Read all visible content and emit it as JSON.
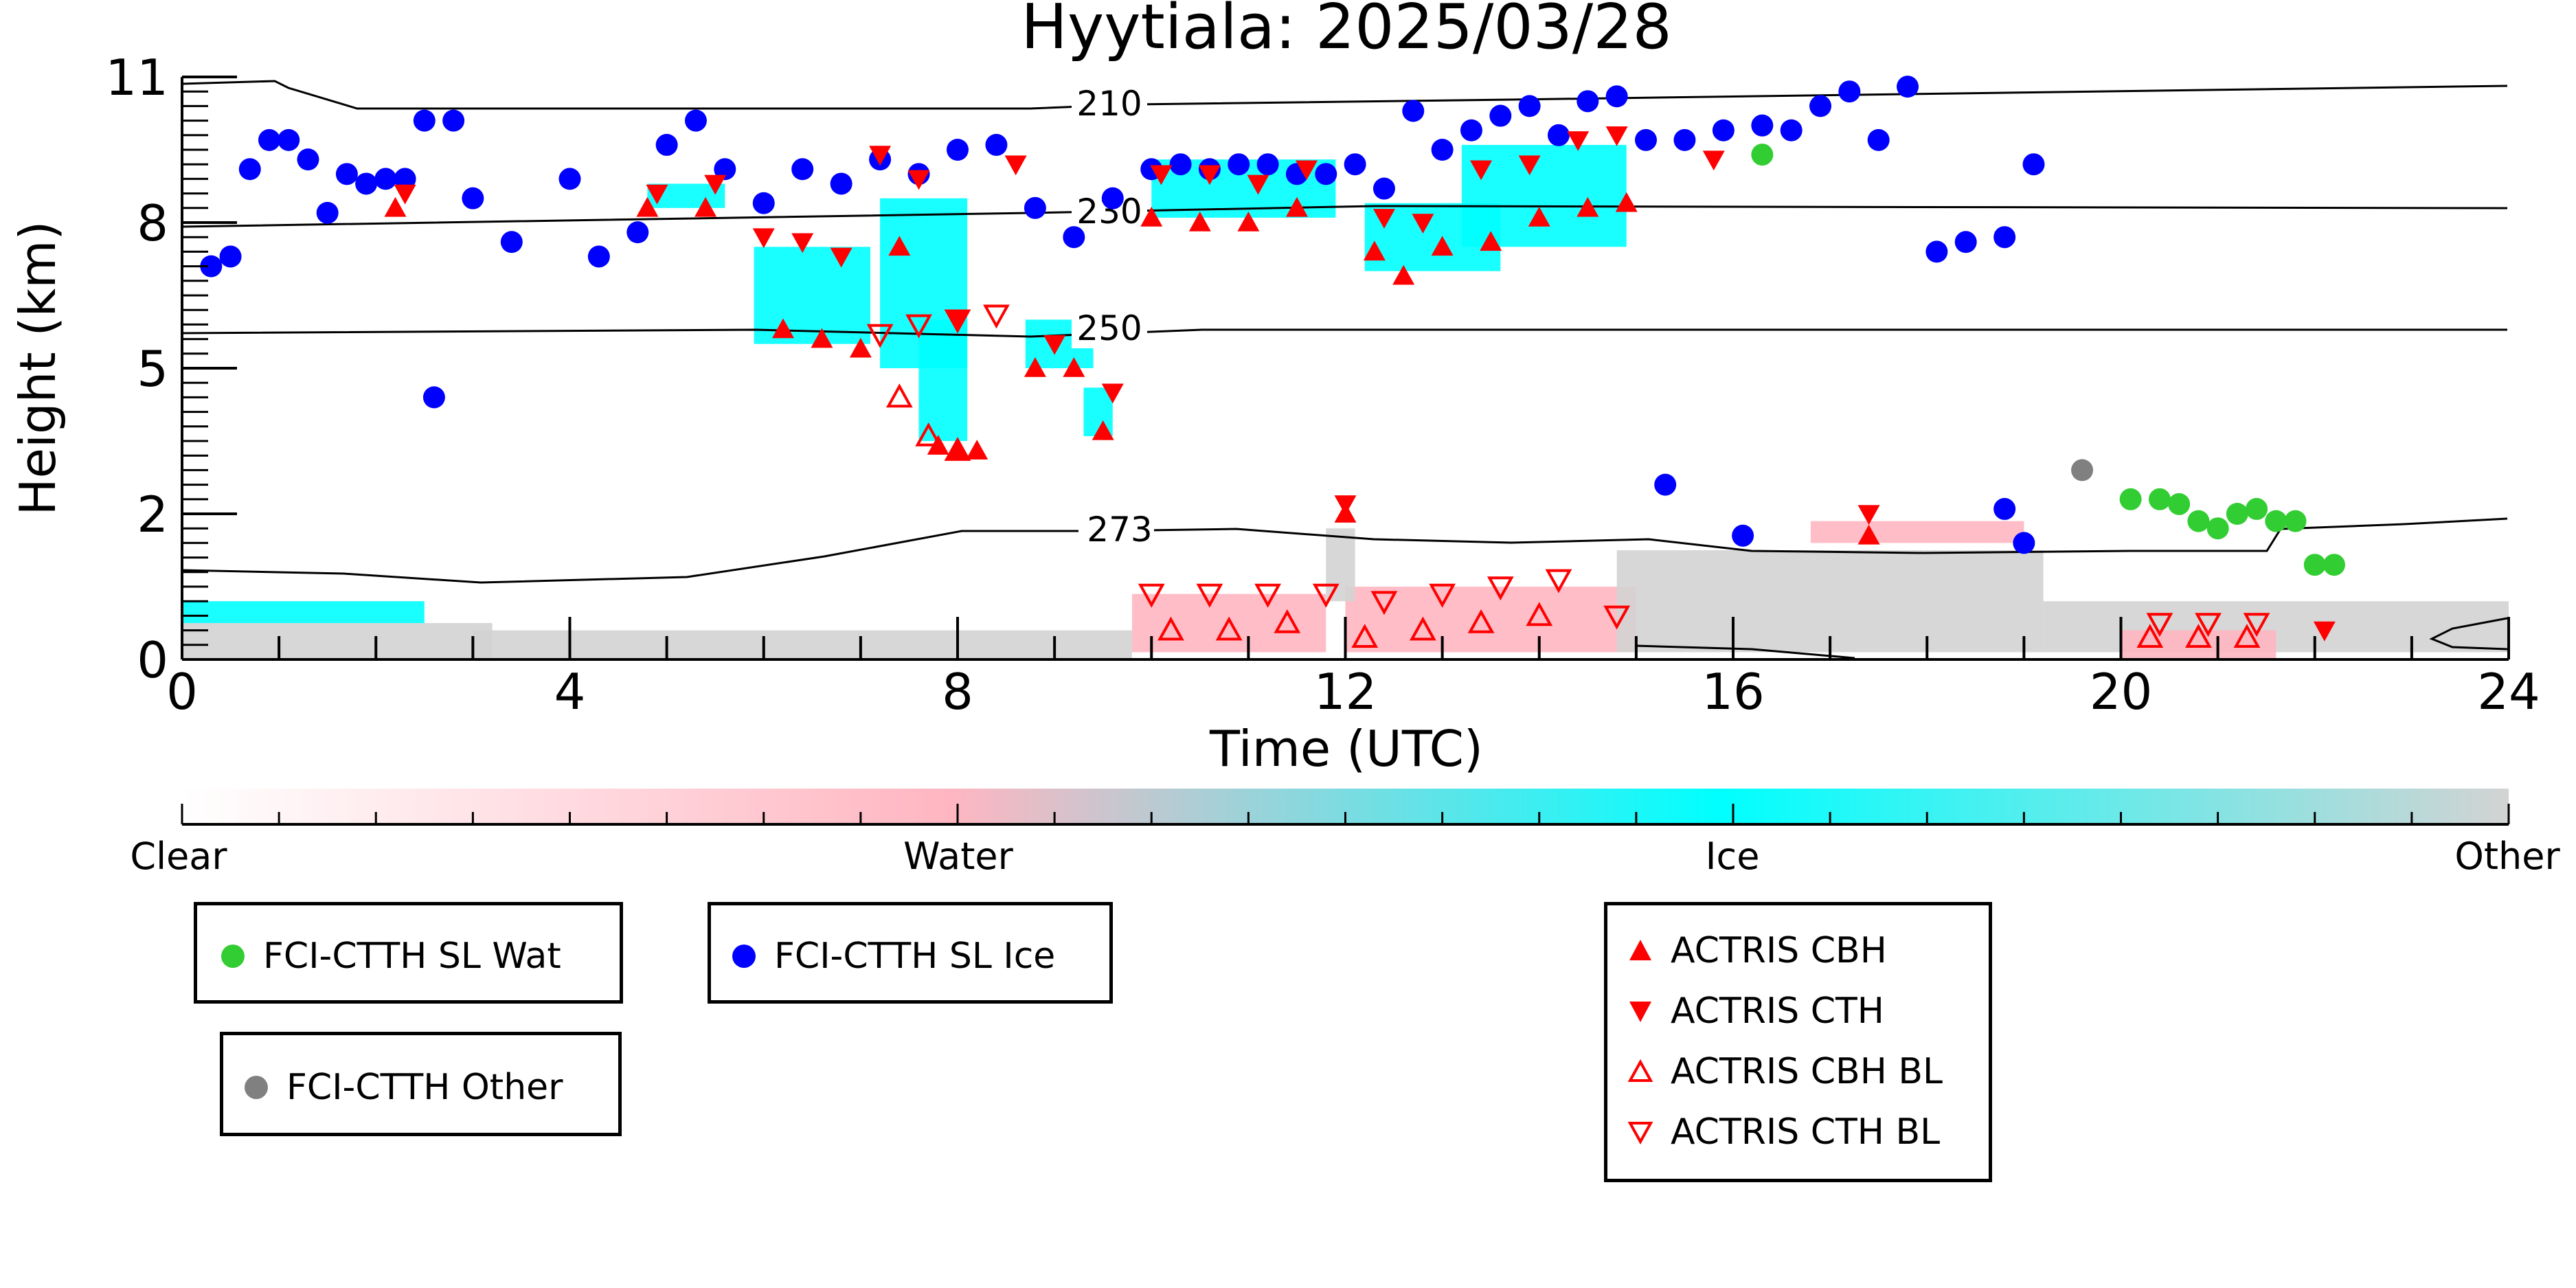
{
  "chart_data": {
    "type": "scatter",
    "title": "Hyytiala: 2025/03/28",
    "xlabel": "Time (UTC)",
    "ylabel": "Height (km)",
    "xlim": [
      0,
      24
    ],
    "ylim": [
      0,
      11
    ],
    "x_ticks": [
      0,
      4,
      8,
      12,
      16,
      20,
      24
    ],
    "y_ticks": [
      0,
      2,
      5,
      8,
      11
    ],
    "y_tick_labels": [
      "0",
      "2",
      "5",
      "8",
      "11"
    ],
    "y_scale": "nonlinear (labels 0,2,5,8,11 equally spaced)",
    "contour_labels": [
      "210",
      "230",
      "250",
      "273"
    ],
    "colorbar": {
      "labels": [
        "Clear",
        "Water",
        "Ice",
        "Other"
      ],
      "colors": [
        "#ffffff",
        "#ffb6c1",
        "#00ffff",
        "#d3d3d3"
      ]
    },
    "series": [
      {
        "name": "FCI-CTTH SL Wat",
        "color": "#32cd32",
        "x": [
          16.3,
          20.1,
          20.4,
          20.6,
          20.8,
          21.0,
          21.2,
          21.4,
          21.6,
          21.8,
          22.0,
          22.2
        ],
        "y": [
          9.4,
          2.3,
          2.3,
          2.2,
          1.9,
          1.8,
          2.0,
          2.1,
          1.9,
          1.9,
          1.3,
          1.3
        ]
      },
      {
        "name": "FCI-CTTH SL Ice",
        "color": "#0000ff",
        "x": [
          0.3,
          0.5,
          0.7,
          0.9,
          1.1,
          1.3,
          1.5,
          1.7,
          1.9,
          2.1,
          2.3,
          2.5,
          2.8,
          3.0,
          3.4,
          4.0,
          4.3,
          4.7,
          5.0,
          5.3,
          5.6,
          6.0,
          6.4,
          6.8,
          7.2,
          7.6,
          8.0,
          8.4,
          8.8,
          9.2,
          9.6,
          10.0,
          10.3,
          10.6,
          10.9,
          11.2,
          11.5,
          11.8,
          12.1,
          12.4,
          12.7,
          13.0,
          13.3,
          13.6,
          13.9,
          14.2,
          14.5,
          14.8,
          15.1,
          15.5,
          15.9,
          16.3,
          16.6,
          16.9,
          17.2,
          17.5,
          17.8,
          18.1,
          18.4,
          18.8,
          19.1,
          2.6,
          15.3,
          16.1,
          18.8,
          19.0
        ],
        "y": [
          7.1,
          7.3,
          9.1,
          9.7,
          9.7,
          9.3,
          8.2,
          9.0,
          8.8,
          8.9,
          8.9,
          10.1,
          10.1,
          8.5,
          7.6,
          8.9,
          7.3,
          7.8,
          9.6,
          10.1,
          9.1,
          8.4,
          9.1,
          8.8,
          9.3,
          9.0,
          9.5,
          9.6,
          8.3,
          7.7,
          8.5,
          9.1,
          9.2,
          9.1,
          9.2,
          9.2,
          9.0,
          9.0,
          9.2,
          8.7,
          10.3,
          9.5,
          9.9,
          10.2,
          10.4,
          9.8,
          10.5,
          10.6,
          9.7,
          9.7,
          9.9,
          10.0,
          9.9,
          10.4,
          10.7,
          9.7,
          10.8,
          7.4,
          7.6,
          7.7,
          9.2,
          4.4,
          2.6,
          1.7,
          2.1,
          1.6
        ]
      },
      {
        "name": "FCI-CTTH Other",
        "color": "#808080",
        "x": [
          19.6
        ],
        "y": [
          2.9
        ]
      },
      {
        "name": "ACTRIS CBH",
        "color": "#ff0000",
        "marker": "triangle-up-filled",
        "x": [
          2.2,
          4.8,
          5.4,
          6.2,
          6.6,
          7.0,
          7.4,
          7.8,
          8.0,
          8.2,
          8.8,
          9.2,
          9.5,
          10.0,
          10.5,
          11.0,
          11.5,
          12.0,
          12.3,
          12.6,
          13.0,
          13.5,
          14.0,
          14.5,
          14.9,
          17.4
        ],
        "y": [
          8.3,
          8.3,
          8.3,
          5.8,
          5.6,
          5.4,
          7.5,
          3.4,
          3.3,
          3.3,
          5.0,
          5.0,
          3.7,
          8.1,
          8.0,
          8.0,
          8.3,
          2.0,
          7.4,
          6.9,
          7.5,
          7.6,
          8.1,
          8.3,
          8.4,
          1.7
        ]
      },
      {
        "name": "ACTRIS CTH",
        "color": "#ff0000",
        "marker": "triangle-down-filled",
        "x": [
          2.3,
          4.9,
          5.5,
          6.0,
          6.4,
          6.8,
          7.2,
          7.6,
          8.0,
          8.6,
          9.0,
          9.6,
          10.1,
          10.6,
          11.1,
          11.6,
          12.0,
          12.4,
          12.8,
          13.4,
          13.9,
          14.4,
          14.8,
          15.8,
          17.4,
          22.1
        ],
        "y": [
          8.6,
          8.6,
          8.8,
          7.7,
          7.6,
          7.3,
          9.4,
          8.9,
          6.0,
          9.2,
          5.5,
          4.5,
          9.0,
          9.0,
          8.8,
          9.1,
          2.2,
          8.1,
          8.0,
          9.1,
          9.2,
          9.7,
          9.8,
          9.3,
          2.0,
          0.4
        ]
      },
      {
        "name": "ACTRIS CBH BL",
        "color": "#ff0000",
        "marker": "triangle-up-open",
        "x": [
          7.4,
          7.7,
          8.0,
          10.2,
          10.8,
          11.4,
          12.2,
          12.8,
          13.4,
          14.0,
          20.3,
          20.8,
          21.3
        ],
        "y": [
          4.4,
          3.6,
          3.3,
          0.4,
          0.4,
          0.5,
          0.3,
          0.4,
          0.5,
          0.6,
          0.3,
          0.3,
          0.3
        ]
      },
      {
        "name": "ACTRIS CTH BL",
        "color": "#ff0000",
        "marker": "triangle-down-open",
        "x": [
          7.2,
          7.6,
          8.0,
          8.4,
          10.0,
          10.6,
          11.2,
          11.8,
          12.4,
          13.0,
          13.6,
          14.2,
          14.8,
          20.4,
          20.9,
          21.4
        ],
        "y": [
          5.7,
          5.9,
          6.0,
          6.1,
          0.9,
          0.9,
          0.9,
          0.9,
          0.8,
          0.9,
          1.0,
          1.1,
          0.6,
          0.5,
          0.5,
          0.5
        ]
      }
    ],
    "grid": false,
    "legend": "below-chart"
  }
}
